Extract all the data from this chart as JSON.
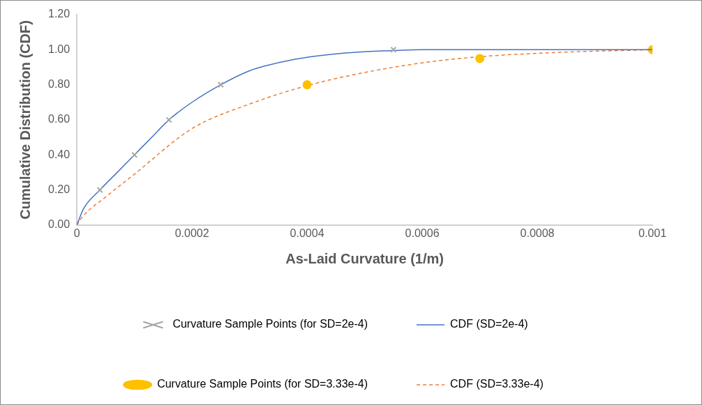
{
  "chart_data": {
    "type": "scatter",
    "xlabel": "As-Laid Curvature (1/m)",
    "ylabel": "Cumulative Distribution (CDF)",
    "xlim": [
      0,
      0.001
    ],
    "xticks": [
      0,
      0.0002,
      0.0004,
      0.0006,
      0.0008,
      0.001
    ],
    "ylim": [
      0,
      1.2
    ],
    "yticks": [
      {
        "value": 0,
        "label": "0.00"
      },
      {
        "value": 0.2,
        "label": "0.20"
      },
      {
        "value": 0.4,
        "label": "0.40"
      },
      {
        "value": 0.6,
        "label": "0.60"
      },
      {
        "value": 0.8,
        "label": "0.80"
      },
      {
        "value": 1,
        "label": "1.00"
      },
      {
        "value": 1.2,
        "label": "1.20"
      }
    ],
    "grid": false,
    "legend": "bottom",
    "series": [
      {
        "name": "Curvature Sample Points (for SD=2e-4)",
        "type": "scatter",
        "marker": "cross",
        "color": "#a5a5a5",
        "x": [
          4e-05,
          0.0001,
          0.00016,
          0.00025,
          0.00055
        ],
        "values": [
          0.2,
          0.4,
          0.6,
          0.8,
          1.0
        ]
      },
      {
        "name": "CDF (SD=2e-4)",
        "type": "line",
        "marker": "none",
        "line_style": "solid",
        "color": "#4472c4",
        "x": [
          0,
          1.2e-05,
          4e-05,
          7e-05,
          0.0001,
          0.00013,
          0.00016,
          0.0002,
          0.00025,
          0.0003,
          0.00033,
          0.00037,
          0.00042,
          0.00047,
          0.00051,
          0.00055,
          0.0006,
          0.0008,
          0.001
        ],
        "values": [
          0,
          0.095,
          0.2,
          0.3,
          0.4,
          0.5,
          0.6,
          0.7,
          0.8,
          0.88,
          0.91,
          0.94,
          0.965,
          0.982,
          0.99,
          0.995,
          1.0,
          1.0,
          1.0
        ]
      },
      {
        "name": "Curvature Sample Points (for SD=3.33e-4)",
        "type": "scatter",
        "marker": "circle",
        "color": "#ffc000",
        "x": [
          0.0004,
          0.0007,
          0.001
        ],
        "values": [
          0.8,
          0.95,
          1.0
        ]
      },
      {
        "name": "CDF (SD=3.33e-4)",
        "type": "line",
        "marker": "none",
        "line_style": "dashed",
        "color": "#ed7d31",
        "x": [
          0,
          1.1e-05,
          5e-05,
          0.0001,
          0.0002,
          0.0003,
          0.0004,
          0.0005,
          0.0006,
          0.0007,
          0.00084,
          0.001
        ],
        "values": [
          0,
          0.052,
          0.16,
          0.29,
          0.55,
          0.69,
          0.795,
          0.87,
          0.925,
          0.96,
          0.985,
          1.0
        ]
      }
    ]
  }
}
